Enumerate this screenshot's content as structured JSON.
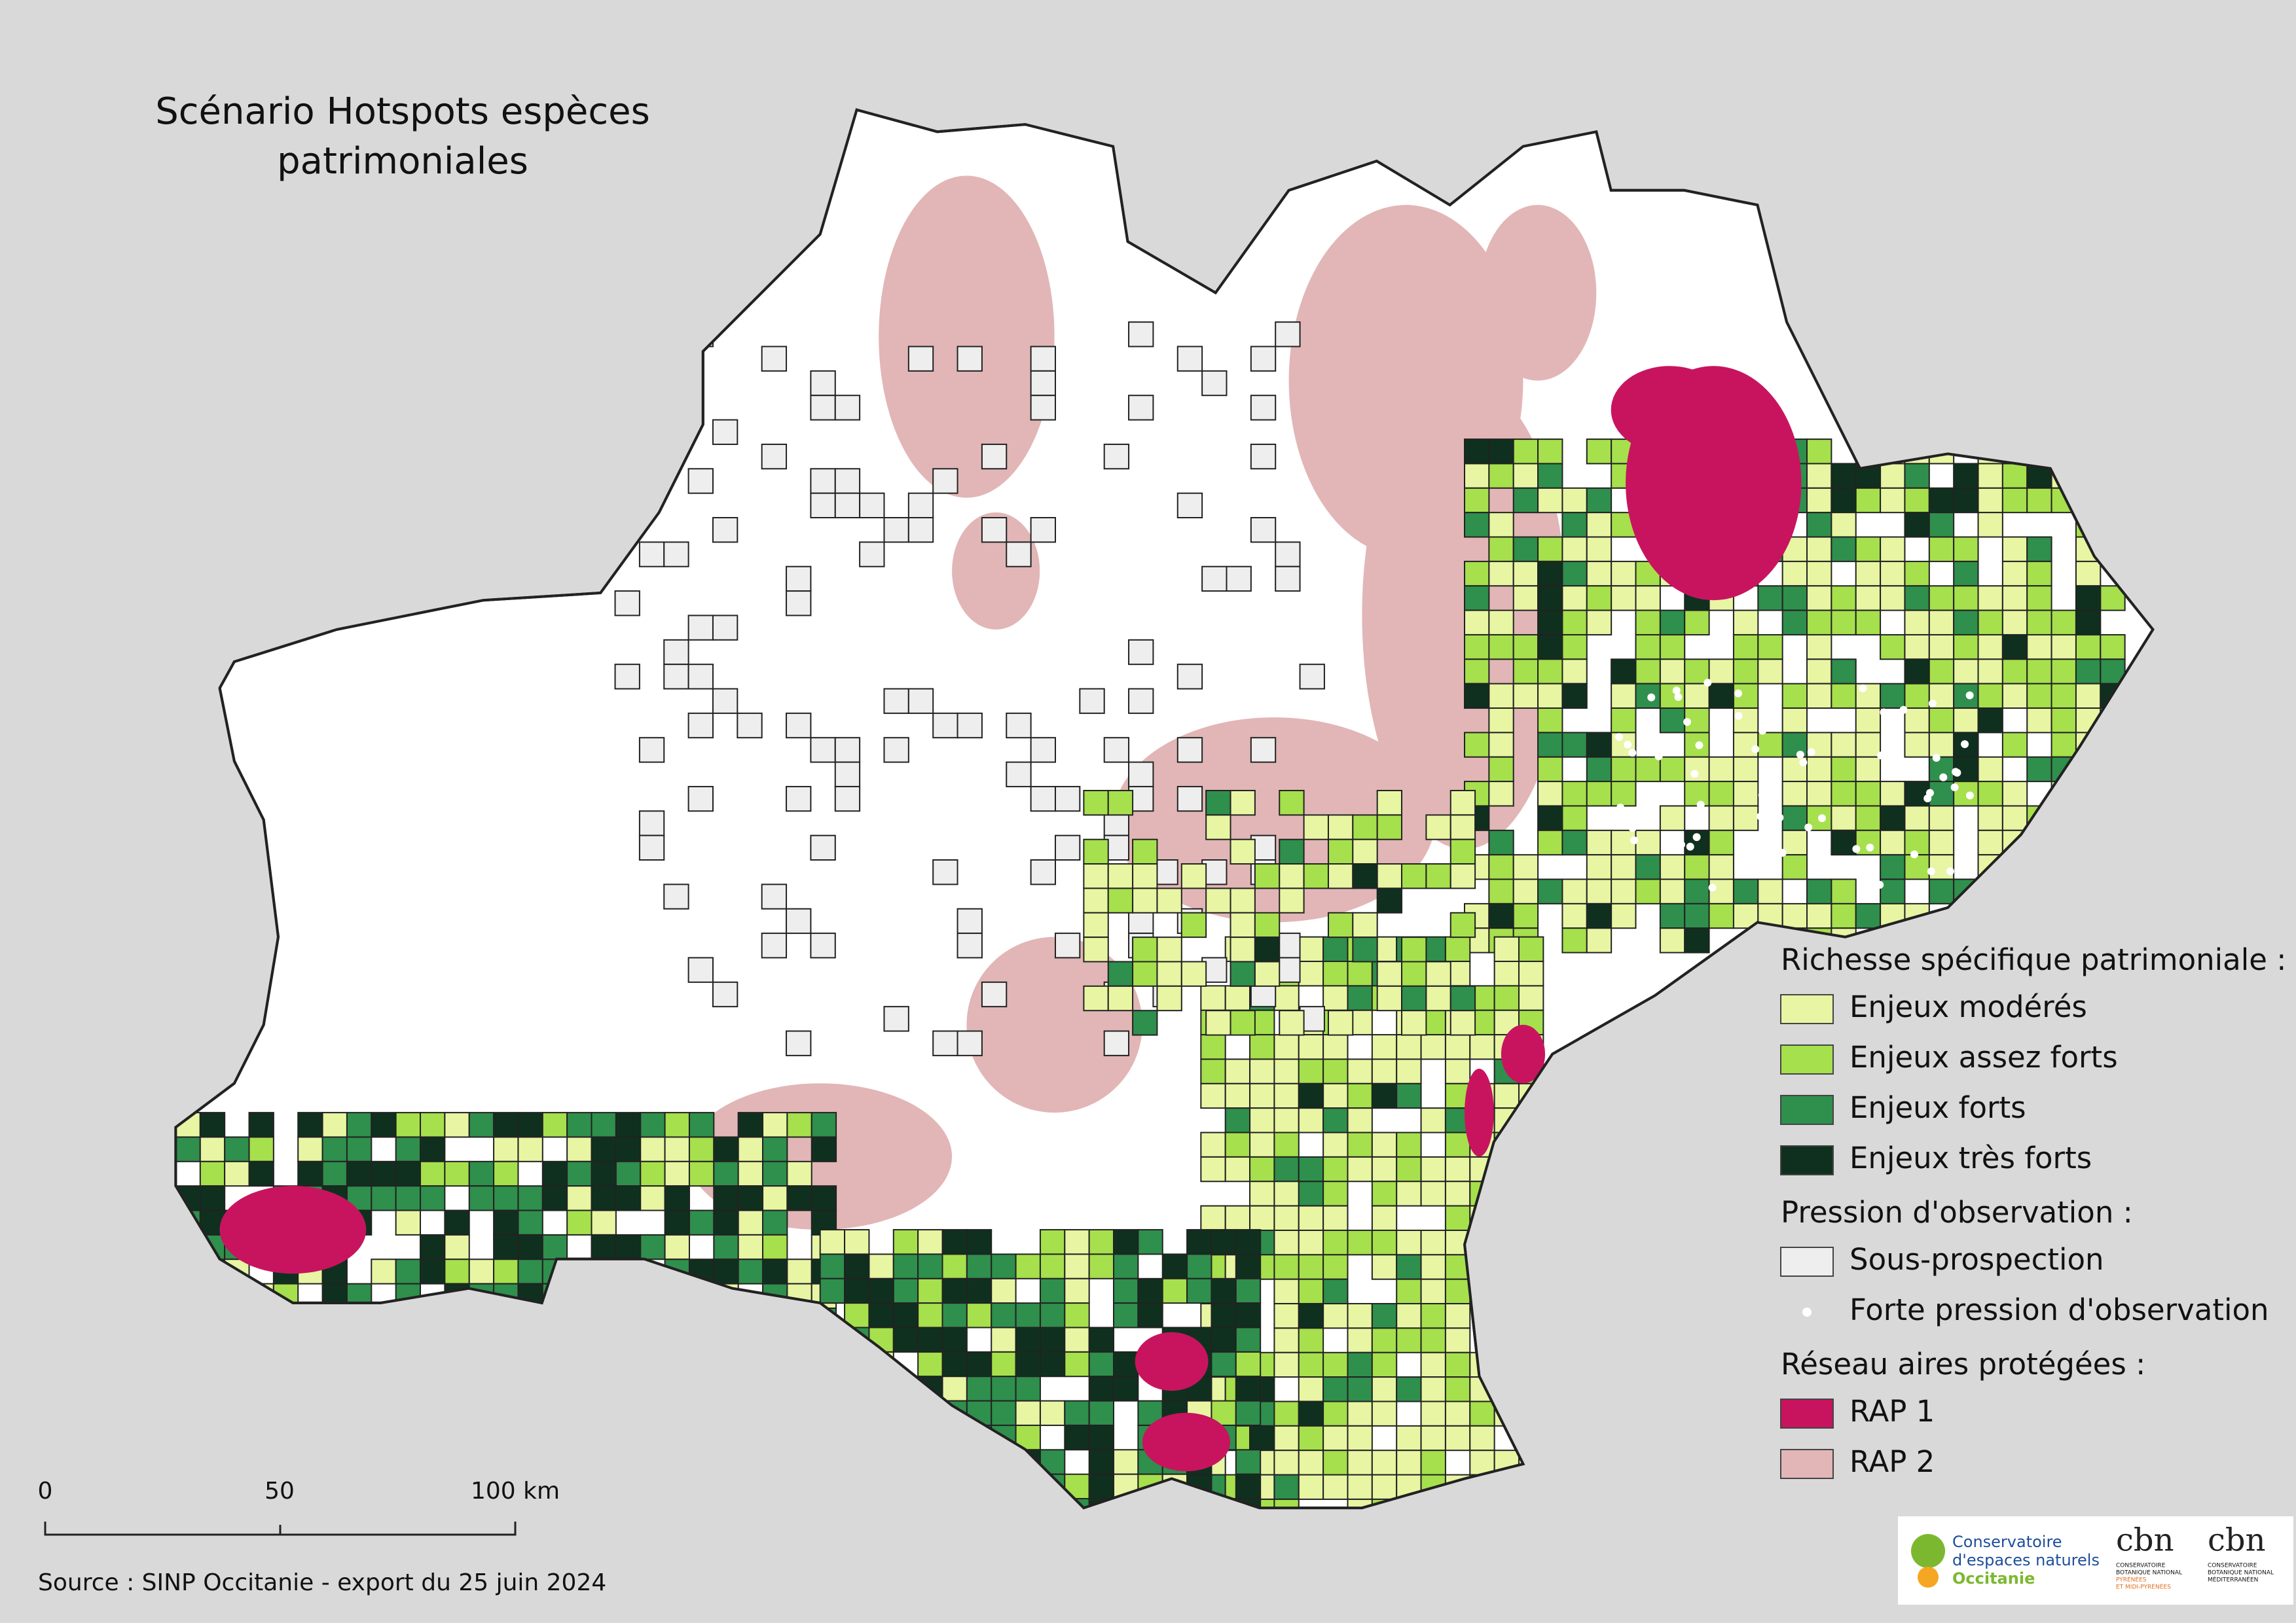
{
  "title_lines": [
    "Scénario Hotspots espèces",
    "patrimoniales"
  ],
  "legend": [
    {
      "title": "Richesse spécifique patrimoniale :",
      "items": [
        {
          "label": "Enjeux modérés",
          "color": "#e8f5a3",
          "symbol": "square"
        },
        {
          "label": "Enjeux assez forts",
          "color": "#a6e04c",
          "symbol": "square"
        },
        {
          "label": "Enjeux forts",
          "color": "#2f8f4c",
          "symbol": "square"
        },
        {
          "label": "Enjeux très forts",
          "color": "#10301f",
          "symbol": "square"
        }
      ]
    },
    {
      "title": "Pression d'observation :",
      "items": [
        {
          "label": "Sous-prospection",
          "color": "#eeeeee",
          "symbol": "square"
        },
        {
          "label": "Forte pression d'observation",
          "color": "#ffffff",
          "symbol": "dot"
        }
      ]
    },
    {
      "title": "Réseau aires protégées :",
      "items": [
        {
          "label": "RAP 1",
          "color": "#c8145f",
          "symbol": "square"
        },
        {
          "label": "RAP 2",
          "color": "#e2b6b6",
          "symbol": "square"
        }
      ]
    }
  ],
  "scale_bar": {
    "labels": [
      "0",
      "50",
      "100 km"
    ]
  },
  "source": "Source : SINP Occitanie - export du 25 juin 2024",
  "logos": {
    "cen": [
      "Conservatoire",
      "d'espaces naturels",
      "Occitanie"
    ],
    "cbn1": {
      "name": "cbn",
      "caption": [
        "CONSERVATOIRE",
        "BOTANIQUE NATIONAL",
        "PYRÉNÉES",
        "ET MIDI-PYRÉNÉES"
      ]
    },
    "cbn2": {
      "name": "cbn",
      "caption": [
        "CONSERVATOIRE",
        "BOTANIQUE NATIONAL",
        "MÉDITERRANÉEN"
      ]
    }
  }
}
